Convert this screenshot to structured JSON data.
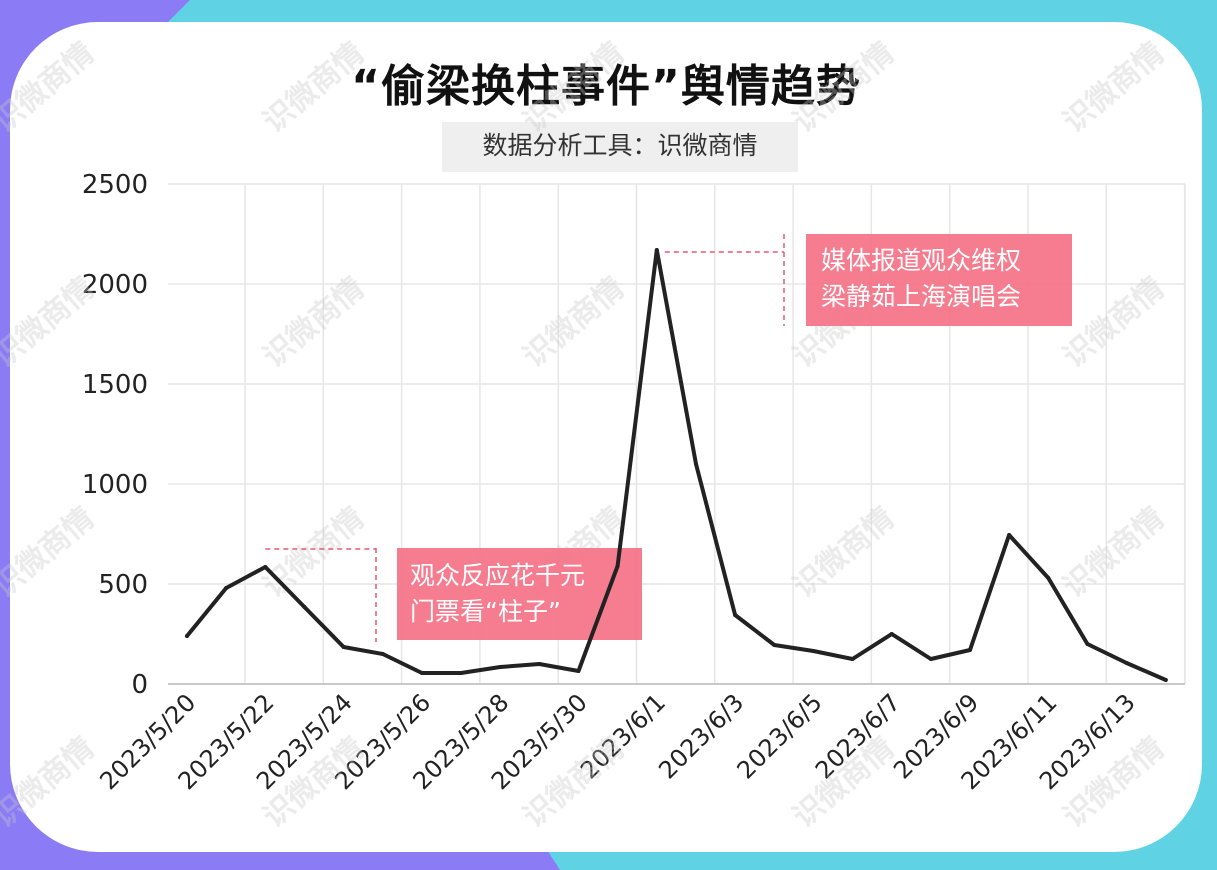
{
  "title": "“偷梁换柱事件”舆情趋势",
  "subtitle": "数据分析工具：识微商情",
  "watermark": "识微商情",
  "colors": {
    "line": "#222222",
    "annotation_box": "#f47286",
    "annotation_line": "#e55a72",
    "grid": "#e6e6e6"
  },
  "chart_data": {
    "type": "line",
    "title": "“偷梁换柱事件”舆情趋势",
    "xlabel": "",
    "ylabel": "",
    "ylim": [
      0,
      2500
    ],
    "yticks": [
      "0",
      "500",
      "1000",
      "1500",
      "2000",
      "2500"
    ],
    "grid": true,
    "x": [
      "2023/5/20",
      "2023/5/21",
      "2023/5/22",
      "2023/5/23",
      "2023/5/24",
      "2023/5/25",
      "2023/5/26",
      "2023/5/27",
      "2023/5/28",
      "2023/5/29",
      "2023/5/30",
      "2023/5/31",
      "2023/6/1",
      "2023/6/2",
      "2023/6/3",
      "2023/6/4",
      "2023/6/5",
      "2023/6/6",
      "2023/6/7",
      "2023/6/8",
      "2023/6/9",
      "2023/6/10",
      "2023/6/11",
      "2023/6/12",
      "2023/6/13",
      "2023/6/14"
    ],
    "x_tick_labels": [
      "2023/5/20",
      "2023/5/22",
      "2023/5/24",
      "2023/5/26",
      "2023/5/28",
      "2023/5/30",
      "2023/6/1",
      "2023/6/3",
      "2023/6/5",
      "2023/6/7",
      "2023/6/9",
      "2023/6/11",
      "2023/6/13"
    ],
    "series": [
      {
        "values": [
          240,
          480,
          585,
          385,
          185,
          150,
          55,
          55,
          85,
          100,
          65,
          590,
          2170,
          1100,
          345,
          195,
          165,
          125,
          250,
          125,
          170,
          745,
          530,
          200,
          105,
          20
        ]
      }
    ],
    "annotations": [
      {
        "lines": [
          "观众反应花千元",
          "门票看“柱子”"
        ],
        "x": "2023/5/22",
        "y": 585
      },
      {
        "lines": [
          "媒体报道观众维权",
          "梁静茹上海演唱会"
        ],
        "x": "2023/6/1",
        "y": 2170
      }
    ]
  }
}
